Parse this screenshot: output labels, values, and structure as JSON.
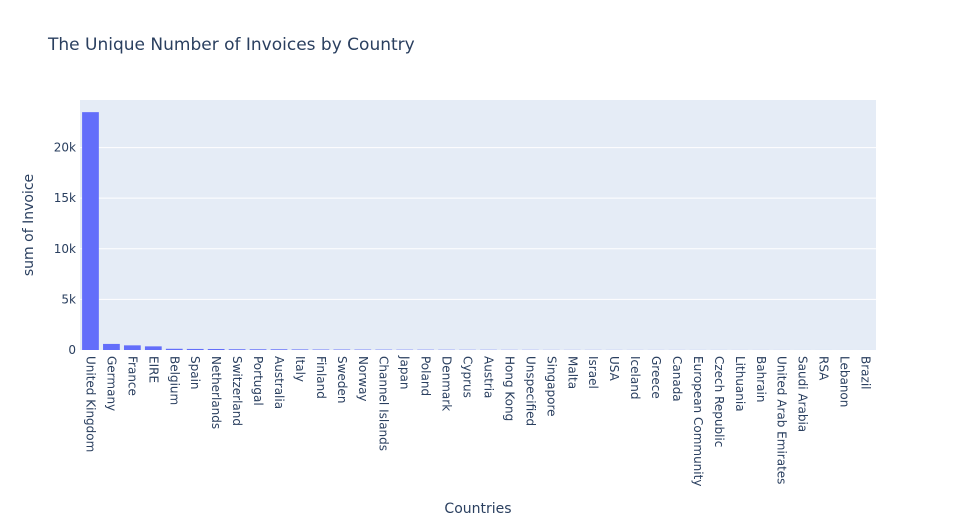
{
  "colors": {
    "bar": "#636efa",
    "plot_bg": "#e5ecf6",
    "grid": "#ffffff",
    "text": "#2a3f5f"
  },
  "chart_data": {
    "type": "bar",
    "title": "The Unique Number of Invoices by Country",
    "xlabel": "Countries",
    "ylabel": "sum of Invoice",
    "ylim": [
      0,
      24700
    ],
    "yticks": [
      0,
      5000,
      10000,
      15000,
      20000
    ],
    "ytick_labels": [
      "0",
      "5k",
      "10k",
      "15k",
      "20k"
    ],
    "grid": true,
    "categories": [
      "United Kingdom",
      "Germany",
      "France",
      "EIRE",
      "Belgium",
      "Spain",
      "Netherlands",
      "Switzerland",
      "Portugal",
      "Australia",
      "Italy",
      "Finland",
      "Sweden",
      "Norway",
      "Channel Islands",
      "Japan",
      "Poland",
      "Denmark",
      "Cyprus",
      "Austria",
      "Hong Kong",
      "Unspecified",
      "Singapore",
      "Malta",
      "Israel",
      "USA",
      "Iceland",
      "Greece",
      "Canada",
      "European Community",
      "Czech Republic",
      "Lithuania",
      "Bahrain",
      "United Arab Emirates",
      "Saudi Arabia",
      "RSA",
      "Lebanon",
      "Brazil"
    ],
    "values": [
      23500,
      600,
      460,
      360,
      120,
      105,
      100,
      75,
      70,
      70,
      55,
      45,
      45,
      40,
      35,
      30,
      30,
      25,
      20,
      20,
      15,
      15,
      10,
      10,
      10,
      8,
      7,
      6,
      6,
      5,
      5,
      4,
      4,
      3,
      2,
      2,
      1,
      1
    ]
  }
}
